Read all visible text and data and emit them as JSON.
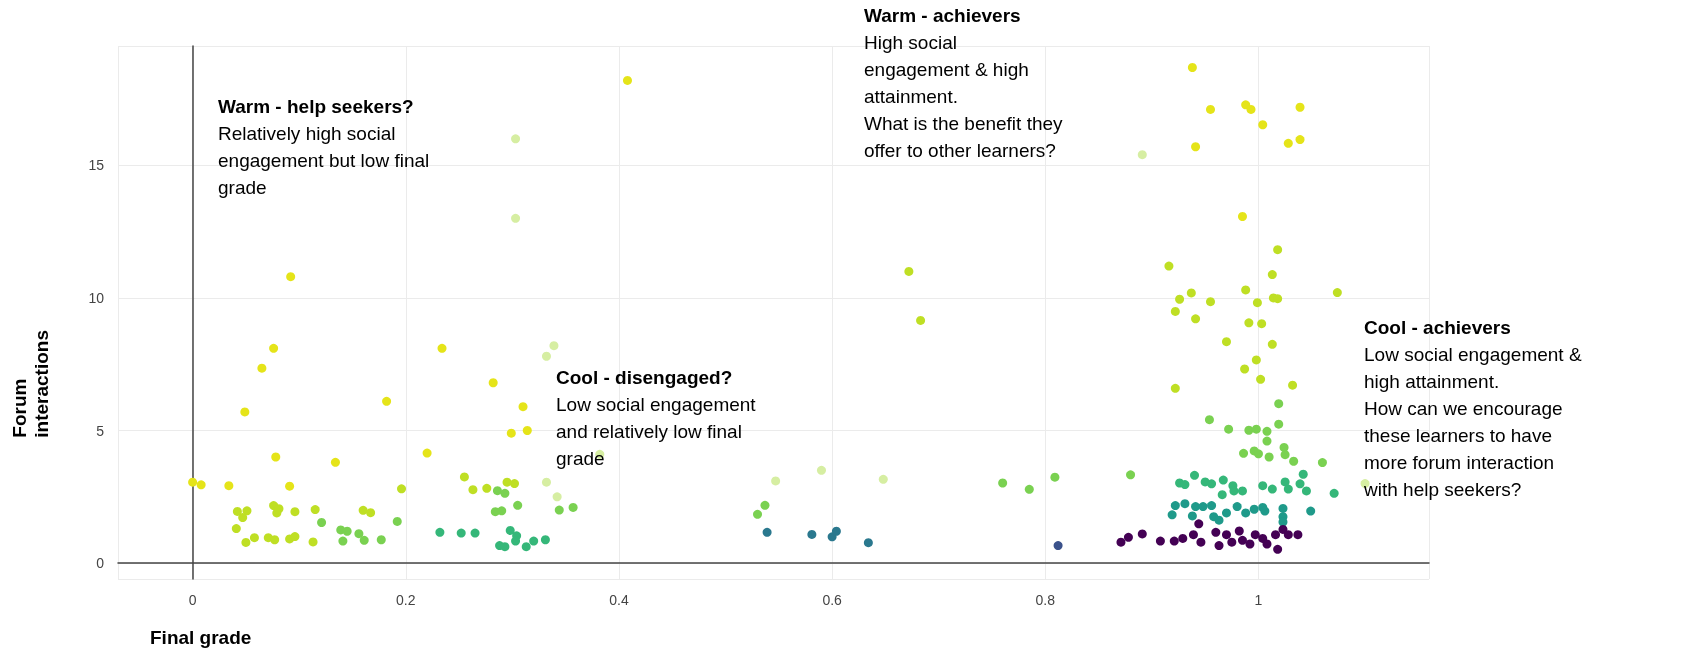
{
  "chart_data": {
    "type": "scatter",
    "xlabel": "Final grade",
    "ylabel": "Forum interactions",
    "xlim": [
      -0.07,
      1.16
    ],
    "xticks": [
      0,
      0.2,
      0.4,
      0.6,
      0.8,
      1
    ],
    "ylim": [
      -0.6,
      19.5
    ],
    "yticks": [
      0,
      5,
      10,
      15
    ],
    "grid": true,
    "marker": "circle",
    "annotations": [
      "Warm - help seekers?\nRelatively high social\nengagement but low final\ngrade",
      "Warm - achievers\nHigh social\nengagement & high\nattainment.\nWhat is the benefit they\noffer to other learners?",
      "Cool - disengaged?\nLow social engagement\nand relatively low final\ngrade",
      "Cool - achievers\nLow social engagement &\nhigh attainment.\nHow can we encourage\nthese learners to have\nmore forum interaction\nwith help seekers?"
    ],
    "series": [
      {
        "color": "#e5e419",
        "x": [
          0.408,
          0.092,
          0.076,
          0.065,
          0.234,
          0.282,
          0.182,
          0.049,
          0.31,
          0.299,
          0.314,
          0.078,
          0.134,
          0.22,
          0,
          0.008,
          0.034,
          0.091,
          0.938,
          0.955,
          0.988,
          0.993,
          1.039,
          1.004,
          0.941,
          1.028,
          1.039,
          0.985
        ],
        "values": [
          18.2,
          10.8,
          8.1,
          7.35,
          8.1,
          6.8,
          6.1,
          5.7,
          5.9,
          4.9,
          5.0,
          4.0,
          3.8,
          4.15,
          3.05,
          2.95,
          2.92,
          2.9,
          18.69,
          17.11,
          17.28,
          17.11,
          17.19,
          16.53,
          15.7,
          15.83,
          15.97,
          13.07
        ]
      },
      {
        "color": "#bfdf24",
        "x": [
          0.196,
          0.255,
          0.263,
          0.276,
          0.295,
          0.302,
          0.042,
          0.051,
          0.047,
          0.076,
          0.081,
          0.079,
          0.096,
          0.115,
          0.16,
          0.167,
          0.041,
          0.05,
          0.058,
          0.071,
          0.077,
          0.091,
          0.096,
          0.113,
          1.018,
          0.916,
          1.013,
          0.672,
          0.683,
          0.988,
          1.014,
          1.018,
          1.074,
          0.926,
          0.937,
          0.955,
          0.999,
          0.922,
          0.941,
          0.991,
          1.003,
          0.97,
          1.013,
          0.998,
          0.987,
          1.002,
          0.922,
          1.032
        ],
        "values": [
          2.8,
          3.25,
          2.77,
          2.82,
          3.05,
          3.0,
          1.95,
          1.97,
          1.72,
          2.17,
          2.05,
          1.89,
          1.94,
          2.02,
          1.99,
          1.9,
          1.3,
          0.78,
          0.96,
          0.96,
          0.88,
          0.91,
          1.0,
          0.8,
          11.82,
          11.2,
          10.88,
          11.0,
          9.15,
          10.3,
          10.0,
          9.97,
          10.2,
          9.95,
          10.19,
          9.86,
          9.82,
          9.49,
          9.21,
          9.06,
          9.03,
          8.35,
          8.25,
          7.66,
          7.32,
          6.93,
          6.59,
          6.71
        ]
      },
      {
        "color": "#7ad151",
        "x": [
          0.286,
          0.293,
          0.121,
          0.192,
          0.139,
          0.145,
          0.141,
          0.156,
          0.161,
          0.177,
          0.284,
          0.29,
          0.305,
          0.344,
          0.357,
          0.537,
          0.53,
          1.019,
          0.954,
          0.972,
          0.991,
          0.998,
          1.019,
          1.008,
          1.008,
          0.986,
          0.996,
          1.0,
          1.01,
          1.024,
          1.025,
          1.033,
          1.06,
          0.88,
          0.809,
          0.785,
          0.76
        ],
        "values": [
          2.73,
          2.63,
          1.53,
          1.57,
          1.25,
          1.2,
          0.83,
          1.11,
          0.86,
          0.88,
          1.94,
          1.97,
          2.18,
          2.0,
          2.1,
          2.18,
          1.84,
          6.01,
          5.41,
          5.05,
          5.01,
          5.05,
          5.24,
          4.97,
          4.6,
          4.14,
          4.23,
          4.12,
          4.0,
          4.36,
          4.09,
          3.84,
          3.79,
          3.33,
          3.24,
          2.78,
          3.02
        ]
      },
      {
        "color": "#35b779",
        "x": [
          0.232,
          0.252,
          0.265,
          0.298,
          0.304,
          0.303,
          0.288,
          0.293,
          0.313,
          0.32,
          0.331,
          0.926,
          0.931,
          0.94,
          0.95,
          0.956,
          0.967,
          0.966,
          0.976,
          0.977,
          0.985,
          1.004,
          1.013,
          1.025,
          1.028,
          1.039,
          1.042,
          1.045,
          1.071
        ],
        "values": [
          1.16,
          1.13,
          1.13,
          1.23,
          1.03,
          0.83,
          0.66,
          0.62,
          0.62,
          0.83,
          0.88,
          3.02,
          2.96,
          3.31,
          3.06,
          2.99,
          3.13,
          2.58,
          2.92,
          2.72,
          2.72,
          2.92,
          2.79,
          3.06,
          2.79,
          2.99,
          3.35,
          2.72,
          2.63
        ]
      },
      {
        "color": "#1f9a8a",
        "x": [
          0.922,
          0.931,
          0.919,
          0.938,
          0.941,
          0.948,
          0.956,
          0.958,
          0.963,
          0.97,
          0.98,
          0.988,
          0.996,
          1.004,
          1.006,
          1.023,
          1.023,
          1.023,
          1.049
        ],
        "values": [
          2.17,
          2.24,
          1.82,
          1.78,
          2.13,
          2.13,
          2.17,
          1.75,
          1.62,
          1.89,
          2.13,
          1.89,
          2.03,
          2.1,
          1.96,
          2.06,
          1.75,
          1.55,
          1.96
        ]
      },
      {
        "color": "#2a788e",
        "x": [
          0.539,
          0.581,
          0.6,
          0.604,
          0.634
        ],
        "values": [
          1.16,
          1.08,
          0.99,
          1.2,
          0.77
        ]
      },
      {
        "color": "#3b528b",
        "x": [
          0.812
        ],
        "values": [
          0.66
        ]
      },
      {
        "color": "#440154",
        "x": [
          0.871,
          0.878,
          0.891,
          0.908,
          0.921,
          0.929,
          0.939,
          0.944,
          0.946,
          0.96,
          0.963,
          0.97,
          0.975,
          0.982,
          0.985,
          0.992,
          0.997,
          1.004,
          1.008,
          1.016,
          1.018,
          1.023,
          1.028,
          1.037
        ],
        "values": [
          0.79,
          0.97,
          1.1,
          0.83,
          0.83,
          0.93,
          1.07,
          1.48,
          0.79,
          1.16,
          0.66,
          1.07,
          0.79,
          1.21,
          0.86,
          0.72,
          1.07,
          0.93,
          0.72,
          1.07,
          0.52,
          1.27,
          1.07,
          1.07
        ]
      },
      {
        "color": "#d6eea2",
        "x": [
          0.303,
          0.303,
          0.339,
          0.332,
          0.382,
          0.332,
          0.342,
          0.547,
          0.59,
          0.891,
          0.648,
          1.1
        ],
        "values": [
          16.0,
          13.0,
          8.2,
          7.8,
          4.1,
          3.05,
          2.5,
          3.1,
          3.5,
          15.4,
          3.16,
          3.0
        ]
      }
    ]
  }
}
